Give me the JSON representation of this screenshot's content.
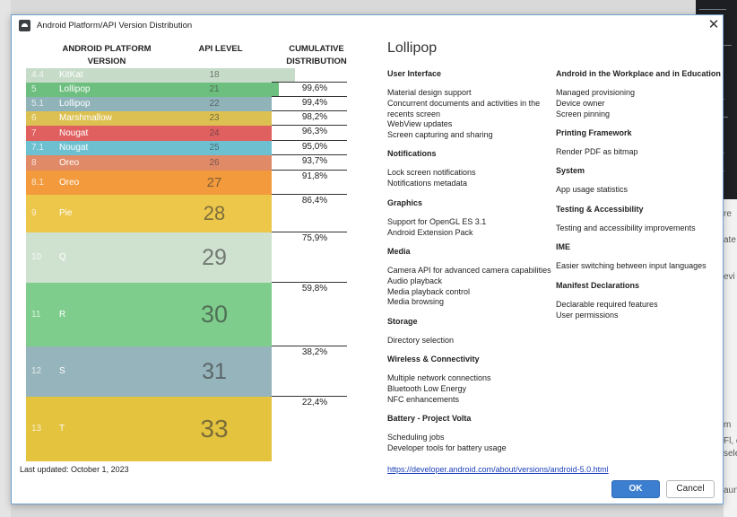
{
  "dialog": {
    "title": "Android Platform/API Version Distribution",
    "close_glyph": "✕"
  },
  "headers": {
    "platform": "ANDROID PLATFORM VERSION",
    "api": "API LEVEL",
    "cumulative": "CUMULATIVE DISTRIBUTION"
  },
  "versions": [
    {
      "ver": "4.4",
      "name": "KitKat",
      "api": "18",
      "pct": "",
      "color": "#c7dcc8"
    },
    {
      "ver": "5",
      "name": "Lollipop",
      "api": "21",
      "pct": "99,6%",
      "color": "#6dbf7f"
    },
    {
      "ver": "5.1",
      "name": "Lollipop",
      "api": "22",
      "pct": "99,4%",
      "color": "#8fb3b9"
    },
    {
      "ver": "6",
      "name": "Marshmallow",
      "api": "23",
      "pct": "98,2%",
      "color": "#dcc152"
    },
    {
      "ver": "7",
      "name": "Nougat",
      "api": "24",
      "pct": "96,3%",
      "color": "#e06060"
    },
    {
      "ver": "7.1",
      "name": "Nougat",
      "api": "25",
      "pct": "95,0%",
      "color": "#6cc0cf"
    },
    {
      "ver": "8",
      "name": "Oreo",
      "api": "26",
      "pct": "93,7%",
      "color": "#e08a68"
    },
    {
      "ver": "8.1",
      "name": "Oreo",
      "api": "27",
      "pct": "91,8%",
      "color": "#f39a3c"
    },
    {
      "ver": "9",
      "name": "Pie",
      "api": "28",
      "pct": "86,4%",
      "color": "#ecc74a"
    },
    {
      "ver": "10",
      "name": "Q",
      "api": "29",
      "pct": "75,9%",
      "color": "#cfe2d0"
    },
    {
      "ver": "11",
      "name": "R",
      "api": "30",
      "pct": "59,8%",
      "color": "#7ecd8c"
    },
    {
      "ver": "12",
      "name": "S",
      "api": "31",
      "pct": "38,2%",
      "color": "#96b4bb"
    },
    {
      "ver": "13",
      "name": "T",
      "api": "33",
      "pct": "22,4%",
      "color": "#e4c33f"
    }
  ],
  "details": {
    "title": "Lollipop",
    "left_sections": [
      {
        "heading": "User Interface",
        "items": [
          "Material design support",
          "Concurrent documents and activities in the",
          "recents screen",
          "WebView updates",
          "Screen capturing and sharing"
        ]
      },
      {
        "heading": "Notifications",
        "items": [
          "Lock screen notifications",
          "Notifications metadata"
        ]
      },
      {
        "heading": "Graphics",
        "items": [
          "Support for OpenGL ES 3.1",
          "Android Extension Pack"
        ]
      },
      {
        "heading": "Media",
        "items": [
          "Camera API for advanced camera capabilities",
          "Audio playback",
          "Media playback control",
          "Media browsing"
        ]
      },
      {
        "heading": "Storage",
        "items": [
          "Directory selection"
        ]
      },
      {
        "heading": "Wireless & Connectivity",
        "items": [
          "Multiple network connections",
          "Bluetooth Low Energy",
          "NFC enhancements"
        ]
      },
      {
        "heading": "Battery - Project Volta",
        "items": [
          "Scheduling jobs",
          "Developer tools for battery usage"
        ]
      }
    ],
    "right_sections": [
      {
        "heading": "Android in the Workplace and in Education",
        "items": [
          "Managed provisioning",
          "Device owner",
          "Screen pinning"
        ]
      },
      {
        "heading": "Printing Framework",
        "items": [
          "Render PDF as bitmap"
        ]
      },
      {
        "heading": "System",
        "items": [
          "App usage statistics"
        ]
      },
      {
        "heading": "Testing & Accessibility",
        "items": [
          "Testing and accessibility improvements"
        ]
      },
      {
        "heading": "IME",
        "items": [
          "Easier switching between input languages"
        ]
      },
      {
        "heading": "Manifest Declarations",
        "items": [
          "Declarable required features",
          "User permissions"
        ]
      }
    ],
    "link": "https://developer.android.com/about/versions/android-5.0.html"
  },
  "footer": {
    "updated": "Last updated: October 1, 2023",
    "ok": "OK",
    "cancel": "Cancel"
  },
  "background": {
    "right_fragments": [
      "re",
      "ate",
      "evi",
      "m",
      "Fl, c",
      "sele",
      "aun"
    ]
  }
}
